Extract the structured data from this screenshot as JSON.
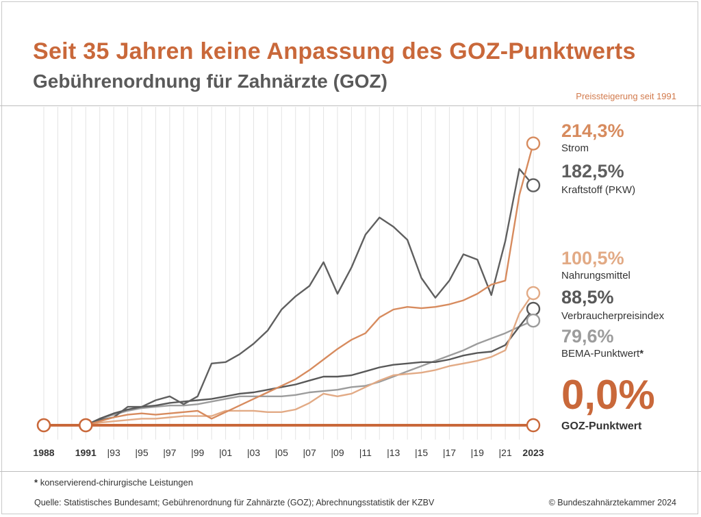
{
  "title": "Seit 35 Jahren keine Anpassung des GOZ-Punktwerts",
  "subtitle": "Gebührenordnung für Zahnärzte (GOZ)",
  "price_note": "Preissteigerung seit 1991",
  "footnote_star": "*",
  "footnote": "konservierend-chirurgische Leistungen",
  "source": "Quelle: Statistisches Bundesamt; Gebührenordnung für Zahnärzte (GOZ); Abrechnungsstatistik der KZBV",
  "copyright": "© Bundeszahnärztekammer 2024",
  "chart_data": {
    "type": "line",
    "xlim": [
      1988,
      2023
    ],
    "ylim": [
      0,
      230
    ],
    "grid": "vertical",
    "x_tick_labels": [
      {
        "year": 1988,
        "label": "1988",
        "bold": true
      },
      {
        "year": 1991,
        "label": "1991",
        "bold": true
      },
      {
        "year": 1993,
        "label": "|93"
      },
      {
        "year": 1995,
        "label": "|95"
      },
      {
        "year": 1997,
        "label": "|97"
      },
      {
        "year": 1999,
        "label": "|99"
      },
      {
        "year": 2001,
        "label": "|01"
      },
      {
        "year": 2003,
        "label": "|03"
      },
      {
        "year": 2005,
        "label": "|05"
      },
      {
        "year": 2007,
        "label": "|07"
      },
      {
        "year": 2009,
        "label": "|09"
      },
      {
        "year": 2011,
        "label": "|11"
      },
      {
        "year": 2013,
        "label": "|13"
      },
      {
        "year": 2015,
        "label": "|15"
      },
      {
        "year": 2017,
        "label": "|17"
      },
      {
        "year": 2019,
        "label": "|19"
      },
      {
        "year": 2021,
        "label": "|21"
      },
      {
        "year": 2023,
        "label": "2023",
        "bold": true
      }
    ],
    "series": [
      {
        "name": "Strom",
        "value_label": "214,3%",
        "color": "#d78b5e",
        "x": [
          1991,
          1992,
          1993,
          1994,
          1995,
          1996,
          1997,
          1998,
          1999,
          2000,
          2001,
          2002,
          2003,
          2004,
          2005,
          2006,
          2007,
          2008,
          2009,
          2010,
          2011,
          2012,
          2013,
          2014,
          2015,
          2016,
          2017,
          2018,
          2019,
          2020,
          2021,
          2022,
          2023
        ],
        "y": [
          0,
          3,
          6,
          8,
          9,
          8,
          9,
          10,
          11,
          5,
          10,
          15,
          20,
          25,
          30,
          35,
          42,
          50,
          58,
          65,
          70,
          82,
          88,
          90,
          89,
          90,
          92,
          95,
          100,
          107,
          110,
          175,
          214.3
        ]
      },
      {
        "name": "Kraftstoff (PKW)",
        "value_label": "182,5%",
        "color": "#5f5f5f",
        "x": [
          1991,
          1992,
          1993,
          1994,
          1995,
          1996,
          1997,
          1998,
          1999,
          2000,
          2001,
          2002,
          2003,
          2004,
          2005,
          2006,
          2007,
          2008,
          2009,
          2010,
          2011,
          2012,
          2013,
          2014,
          2015,
          2016,
          2017,
          2018,
          2019,
          2020,
          2021,
          2022,
          2023
        ],
        "y": [
          0,
          4,
          6,
          14,
          14,
          19,
          22,
          16,
          22,
          47,
          48,
          54,
          62,
          72,
          88,
          98,
          106,
          124,
          100,
          120,
          145,
          158,
          151,
          141,
          112,
          97,
          110,
          130,
          126,
          99,
          140,
          195,
          182.5
        ]
      },
      {
        "name": "Nahrungsmittel",
        "value_label": "100,5%",
        "color": "#e2aa85",
        "x": [
          1991,
          1992,
          1993,
          1994,
          1995,
          1996,
          1997,
          1998,
          1999,
          2000,
          2001,
          2002,
          2003,
          2004,
          2005,
          2006,
          2007,
          2008,
          2009,
          2010,
          2011,
          2012,
          2013,
          2014,
          2015,
          2016,
          2017,
          2018,
          2019,
          2020,
          2021,
          2022,
          2023
        ],
        "y": [
          0,
          2,
          3,
          4,
          5,
          5,
          6,
          7,
          7,
          7,
          11,
          11,
          11,
          10,
          10,
          12,
          17,
          24,
          22,
          24,
          29,
          34,
          38,
          39,
          40,
          42,
          45,
          47,
          49,
          52,
          57,
          85,
          100.5
        ]
      },
      {
        "name": "Verbraucherpreisindex",
        "value_label": "88,5%",
        "color": "#585858",
        "x": [
          1991,
          1992,
          1993,
          1994,
          1995,
          1996,
          1997,
          1998,
          1999,
          2000,
          2001,
          2002,
          2003,
          2004,
          2005,
          2006,
          2007,
          2008,
          2009,
          2010,
          2011,
          2012,
          2013,
          2014,
          2015,
          2016,
          2017,
          2018,
          2019,
          2020,
          2021,
          2022,
          2023
        ],
        "y": [
          0,
          5,
          9,
          12,
          14,
          15,
          17,
          18,
          19,
          20,
          22,
          24,
          25,
          27,
          29,
          31,
          34,
          37,
          37,
          38,
          41,
          44,
          46,
          47,
          48,
          48,
          50,
          53,
          55,
          56,
          61,
          75,
          88.5
        ]
      },
      {
        "name": "BEMA-Punktwert",
        "name_suffix": "*",
        "value_label": "79,6%",
        "color": "#9c9c9c",
        "x": [
          1991,
          1992,
          1993,
          1994,
          1995,
          1996,
          1997,
          1998,
          1999,
          2000,
          2001,
          2002,
          2003,
          2004,
          2005,
          2006,
          2007,
          2008,
          2009,
          2010,
          2011,
          2012,
          2013,
          2014,
          2015,
          2016,
          2017,
          2018,
          2019,
          2020,
          2021,
          2022,
          2023
        ],
        "y": [
          0,
          5,
          8,
          11,
          13,
          14,
          15,
          15,
          16,
          18,
          20,
          22,
          22,
          22,
          22,
          23,
          25,
          26,
          27,
          29,
          30,
          33,
          37,
          41,
          45,
          49,
          53,
          57,
          62,
          66,
          70,
          75,
          79.6
        ]
      },
      {
        "name": "GOZ-Punktwert",
        "value_label": "0,0%",
        "color": "#c9683a",
        "x": [
          1988,
          2023
        ],
        "y": [
          0,
          0
        ]
      }
    ]
  }
}
